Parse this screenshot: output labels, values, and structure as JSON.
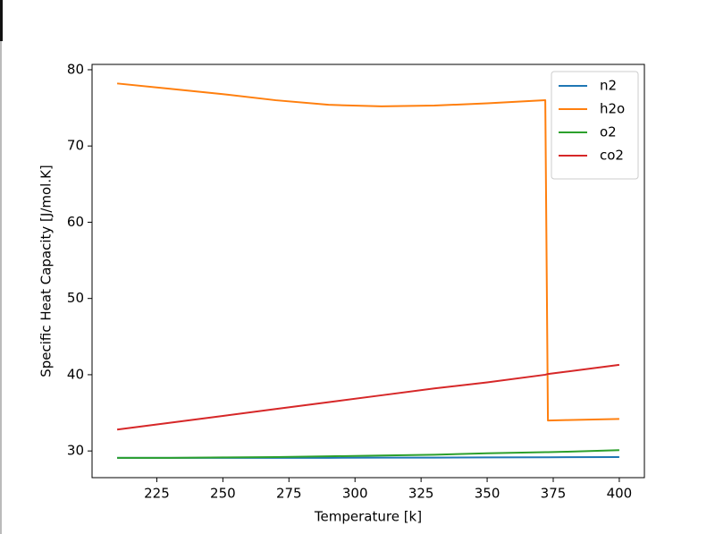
{
  "chart_data": {
    "type": "line",
    "xlabel": "Temperature [k]",
    "ylabel": "Specific Heat Capacity [J/mol.K]",
    "x": [
      210,
      230,
      250,
      270,
      290,
      310,
      330,
      350,
      372,
      373,
      380,
      400
    ],
    "series": [
      {
        "name": "n2",
        "color": "#1f77b4",
        "values": [
          29.1,
          29.1,
          29.1,
          29.1,
          29.1,
          29.12,
          29.13,
          29.15,
          29.17,
          29.17,
          29.18,
          29.2
        ]
      },
      {
        "name": "h2o",
        "color": "#ff7f0e",
        "values": [
          78.2,
          77.5,
          76.8,
          76.0,
          75.4,
          75.2,
          75.3,
          75.6,
          76.0,
          34.0,
          34.05,
          34.2
        ]
      },
      {
        "name": "o2",
        "color": "#2ca02c",
        "values": [
          29.1,
          29.1,
          29.15,
          29.2,
          29.3,
          29.4,
          29.5,
          29.7,
          29.85,
          29.85,
          29.9,
          30.1
        ]
      },
      {
        "name": "co2",
        "color": "#d62728",
        "values": [
          32.8,
          33.7,
          34.6,
          35.5,
          36.4,
          37.3,
          38.2,
          39.0,
          40.0,
          40.1,
          40.4,
          41.3
        ]
      }
    ],
    "xlim": [
      200.5,
      409.5
    ],
    "xticks": [
      225,
      250,
      275,
      300,
      325,
      350,
      375,
      400
    ],
    "ylim": [
      26.5,
      80.7
    ],
    "yticks": [
      30,
      40,
      50,
      60,
      70,
      80
    ],
    "legend": "upper right"
  }
}
